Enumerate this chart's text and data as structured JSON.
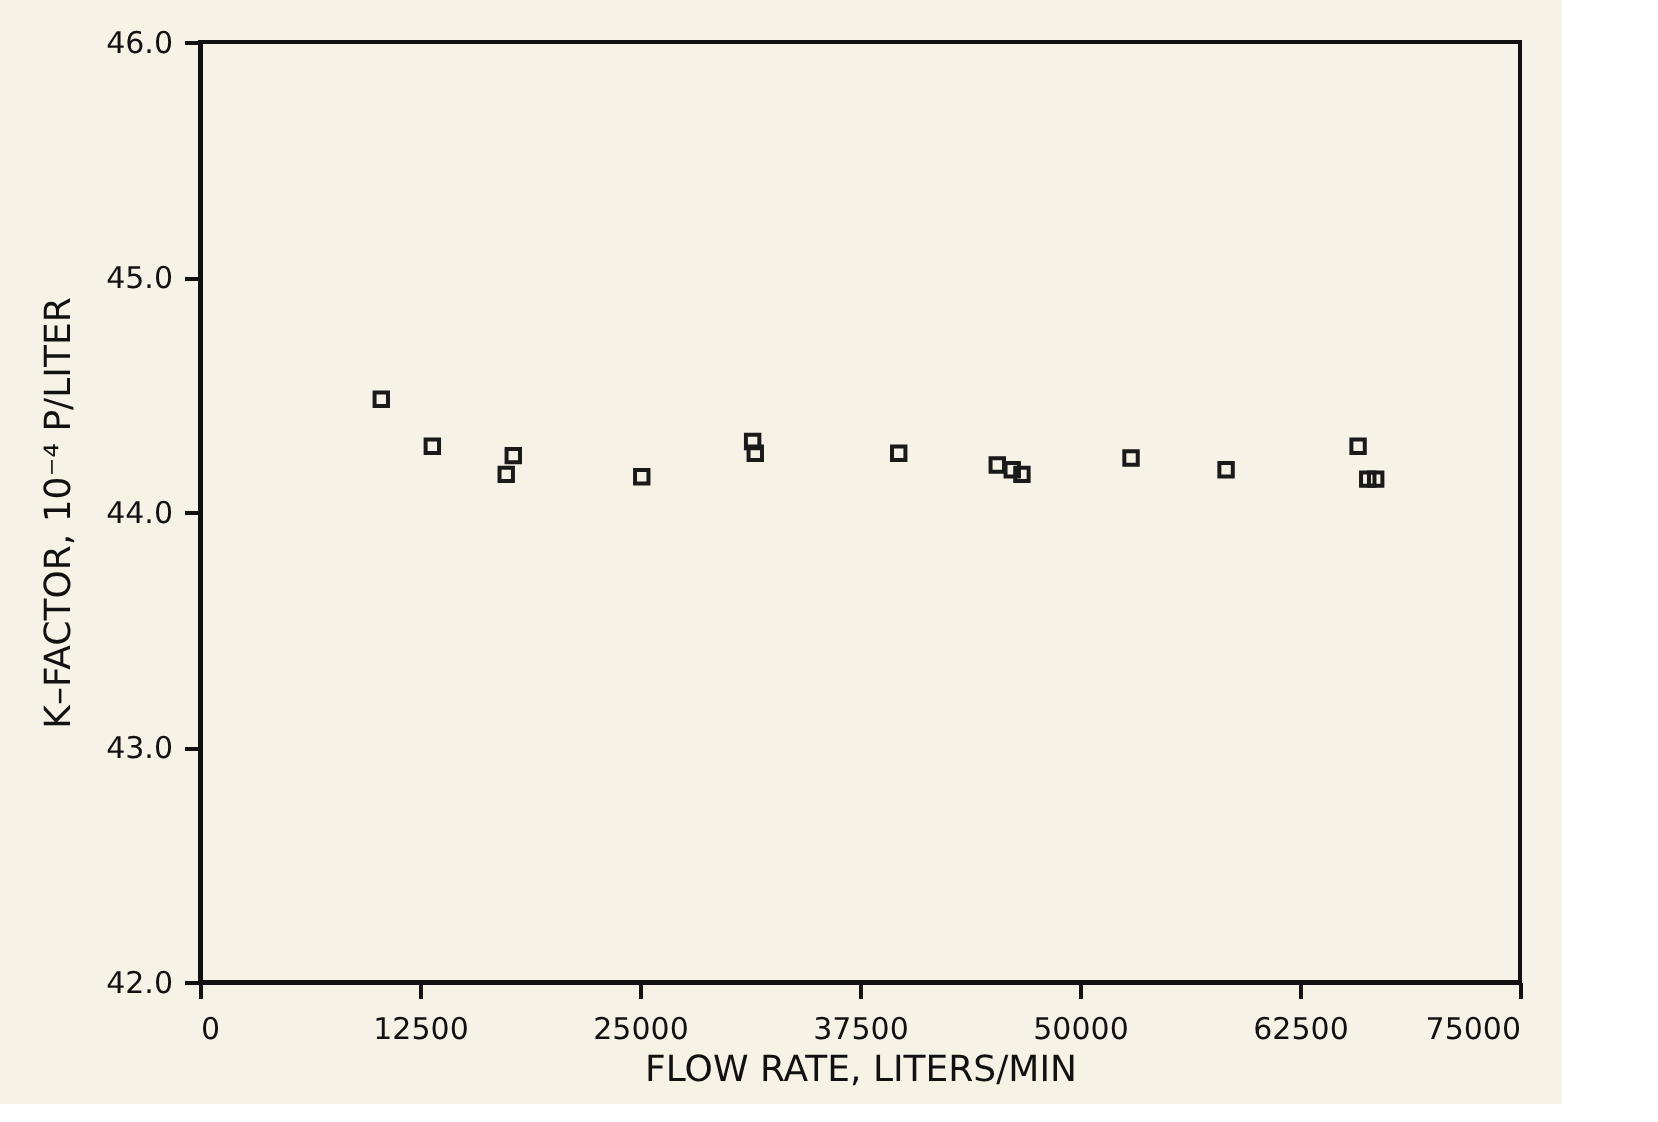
{
  "chart_data": {
    "type": "scatter",
    "xlabel": "FLOW RATE, LITERS/MIN",
    "ylabel": "K–FACTOR, 10⁻⁴ P/LITER",
    "x": [
      10300,
      13200,
      17800,
      17400,
      25100,
      31400,
      31550,
      39700,
      45300,
      46150,
      46700,
      52900,
      58300,
      65800,
      66350,
      66800
    ],
    "values": [
      44.48,
      44.28,
      44.24,
      44.16,
      44.15,
      44.3,
      44.25,
      44.25,
      44.2,
      44.18,
      44.16,
      44.23,
      44.18,
      44.28,
      44.14,
      44.14
    ],
    "color": "#1a1a1a",
    "marker": "square",
    "xlim": [
      0,
      75000
    ],
    "xticks": [
      0,
      12500,
      25000,
      37500,
      50000,
      62500,
      75000
    ],
    "ylim": [
      42.0,
      46.0
    ],
    "yticks": [
      {
        "value": 42,
        "label": "42.0"
      },
      {
        "value": 43,
        "label": "43.0"
      },
      {
        "value": 44,
        "label": "44.0"
      },
      {
        "value": 45,
        "label": "45.0"
      },
      {
        "value": 46,
        "label": "46.0"
      }
    ],
    "grid": false
  }
}
